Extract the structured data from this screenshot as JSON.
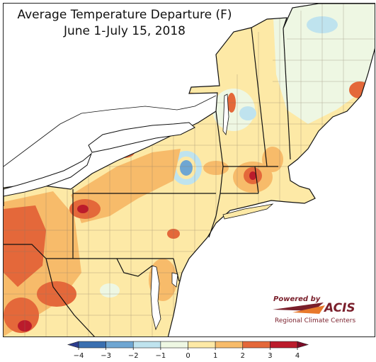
{
  "title": {
    "line1": "Average Temperature Departure (F)",
    "line2": "June 1-July 15, 2018"
  },
  "logo": {
    "powered_by": "Powered by",
    "brand": "ACIS",
    "subtitle": "Regional Climate Centers"
  },
  "legend": {
    "ticks": [
      "−4",
      "−3",
      "−2",
      "−1",
      "0",
      "1",
      "2",
      "3",
      "4"
    ],
    "bins": [
      {
        "from": -4,
        "to": -3,
        "color": "#3a6fb0"
      },
      {
        "from": -3,
        "to": -2,
        "color": "#6fa6d2"
      },
      {
        "from": -2,
        "to": -1,
        "color": "#bfe3ee"
      },
      {
        "from": -1,
        "to": 0,
        "color": "#eef7e3"
      },
      {
        "from": 0,
        "to": 1,
        "color": "#fde9a6"
      },
      {
        "from": 1,
        "to": 2,
        "color": "#f7bb6a"
      },
      {
        "from": 2,
        "to": 3,
        "color": "#e4683a"
      },
      {
        "from": 3,
        "to": 4,
        "color": "#bb1b2b"
      }
    ],
    "under_color": "#2c3d8f",
    "over_color": "#7c0a26"
  },
  "colors": {
    "lake_water": "#ffffff",
    "state_border": "#111111",
    "county_border": "#8a7b66",
    "logo_red": "#7a1f2b",
    "logo_orange": "#e8792b"
  }
}
